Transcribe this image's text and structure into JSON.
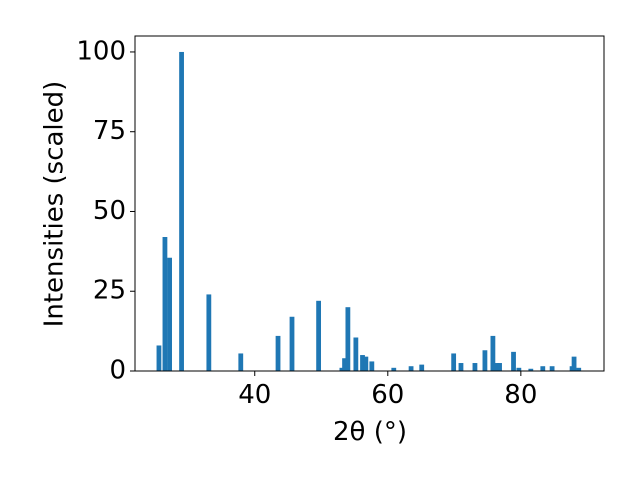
{
  "chart_data": {
    "type": "bar",
    "xlabel": "2θ (°)",
    "ylabel": "Intensities (scaled)",
    "x": [
      25.6,
      26.5,
      27.2,
      29.0,
      33.1,
      37.9,
      43.5,
      45.6,
      49.6,
      53.1,
      53.5,
      54.0,
      55.2,
      56.2,
      56.7,
      57.6,
      60.9,
      63.5,
      65.1,
      69.9,
      71.0,
      73.1,
      74.6,
      75.8,
      76.4,
      76.8,
      78.9,
      79.7,
      81.5,
      83.3,
      84.7,
      87.7,
      88.0,
      88.7
    ],
    "values": [
      8,
      42,
      35.5,
      100,
      24,
      5.5,
      11,
      17,
      22,
      1,
      4,
      20,
      10.5,
      5,
      4.5,
      3,
      1,
      1.5,
      2,
      5.5,
      2.5,
      2.5,
      6.5,
      11,
      2.5,
      2.5,
      6,
      1,
      0.7,
      1.5,
      1.5,
      1.5,
      4.5,
      1
    ],
    "color": "#1f77b4",
    "xlim": [
      22,
      92.5
    ],
    "ylim": [
      0,
      105
    ],
    "xticks": [
      40,
      60,
      80
    ],
    "yticks": [
      0,
      25,
      50,
      75,
      100
    ]
  }
}
